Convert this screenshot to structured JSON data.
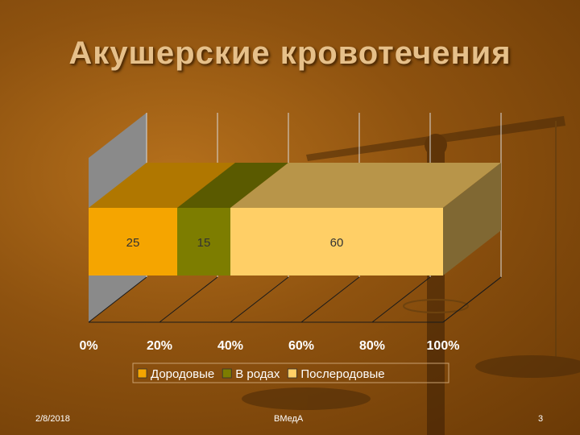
{
  "slide": {
    "title": "Акушерские кровотечения",
    "footer_date": "2/8/2018",
    "footer_center": "ВМедА",
    "footer_page": "3"
  },
  "chart_data": {
    "type": "bar",
    "orientation": "horizontal",
    "stacked": "percent",
    "title": "",
    "categories": [
      ""
    ],
    "series": [
      {
        "name": "Дородовые",
        "values": [
          25
        ],
        "color": "#f5a500"
      },
      {
        "name": "В родах",
        "values": [
          15
        ],
        "color": "#7d7d00"
      },
      {
        "name": "Послеродовые",
        "values": [
          60
        ],
        "color": "#ffcf66"
      }
    ],
    "data_labels": [
      "25",
      "15",
      "60"
    ],
    "xaxis": {
      "ticks": [
        "0%",
        "20%",
        "40%",
        "60%",
        "80%",
        "100%"
      ],
      "range": [
        0,
        100
      ]
    },
    "grid": true,
    "legend": {
      "position": "bottom"
    }
  }
}
